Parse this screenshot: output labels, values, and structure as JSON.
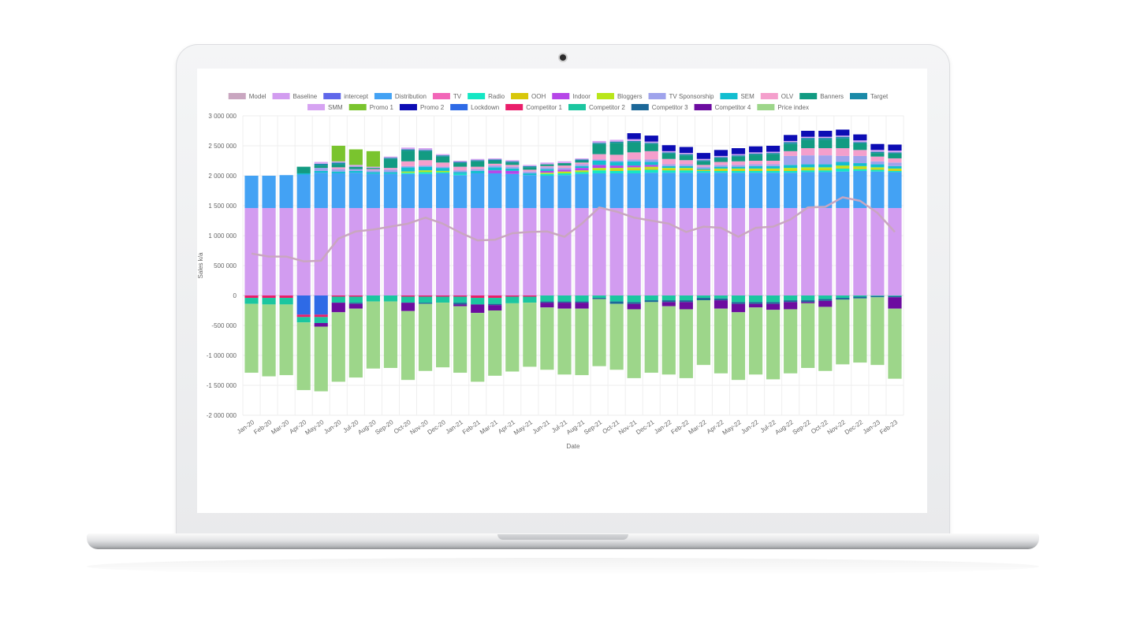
{
  "chart_data": {
    "type": "bar",
    "stacked": true,
    "xlabel": "Date",
    "ylabel": "Sales k/a",
    "ylim": [
      -2000000,
      3000000
    ],
    "yticks": [
      3000000,
      2500000,
      2000000,
      1500000,
      1000000,
      500000,
      0,
      -500000,
      -1000000,
      -1500000,
      -2000000
    ],
    "ytick_labels": [
      "3 000 000",
      "2 500 000",
      "2 000 000",
      "1 500 000",
      "1 000 000",
      "500 000",
      "0",
      "-500 000",
      "-1 000 000",
      "-1 500 000",
      "-2 000 000"
    ],
    "grid": true,
    "legend_position": "top",
    "categories": [
      "Jan-20",
      "Feb-20",
      "Mar-20",
      "Apr-20",
      "May-20",
      "Jun-20",
      "Jul-20",
      "Aug-20",
      "Sep-20",
      "Oct-20",
      "Nov-20",
      "Dec-20",
      "Jan-21",
      "Feb-21",
      "Mar-21",
      "Apr-21",
      "May-21",
      "Jun-21",
      "Jul-21",
      "Aug-21",
      "Sep-21",
      "Oct-21",
      "Nov-21",
      "Dec-21",
      "Jan-22",
      "Feb-22",
      "Mar-22",
      "Apr-22",
      "May-22",
      "Jun-22",
      "Jul-22",
      "Aug-22",
      "Sep-22",
      "Oct-22",
      "Nov-22",
      "Dec-22",
      "Jan-23",
      "Feb-23"
    ],
    "legend": [
      {
        "name": "Model",
        "color": "#c9a6c0"
      },
      {
        "name": "Baseline",
        "color": "#d29cf0"
      },
      {
        "name": "intercept",
        "color": "#5f67ea"
      },
      {
        "name": "Distribution",
        "color": "#43a2f4"
      },
      {
        "name": "TV",
        "color": "#f266b8"
      },
      {
        "name": "Radio",
        "color": "#14e7c4"
      },
      {
        "name": "OOH",
        "color": "#d8c70a"
      },
      {
        "name": "Indoor",
        "color": "#b646e8"
      },
      {
        "name": "Bloggers",
        "color": "#b9e61a"
      },
      {
        "name": "TV Sponsorship",
        "color": "#9fa3ec"
      },
      {
        "name": "SEM",
        "color": "#12bed0"
      },
      {
        "name": "OLV",
        "color": "#f49fcc"
      },
      {
        "name": "Banners",
        "color": "#129b82"
      },
      {
        "name": "Target",
        "color": "#1a8aa8"
      },
      {
        "name": "SMM",
        "color": "#d6a3f2"
      },
      {
        "name": "Promo 1",
        "color": "#7ac42e"
      },
      {
        "name": "Promo 2",
        "color": "#0c0cb4"
      },
      {
        "name": "Lockdown",
        "color": "#2e6ae6"
      },
      {
        "name": "Competitor 1",
        "color": "#ea1e6a"
      },
      {
        "name": "Competitor 2",
        "color": "#1bc6a0"
      },
      {
        "name": "Competitor 3",
        "color": "#1c6898"
      },
      {
        "name": "Competitor 4",
        "color": "#6c0ca0"
      },
      {
        "name": "Price index",
        "color": "#9dd68a"
      }
    ],
    "series": [
      {
        "name": "Baseline",
        "color": "#d29cf0",
        "values": [
          1460000,
          1460000,
          1460000,
          1460000,
          1460000,
          1460000,
          1460000,
          1460000,
          1460000,
          1460000,
          1460000,
          1460000,
          1460000,
          1460000,
          1460000,
          1460000,
          1460000,
          1460000,
          1460000,
          1460000,
          1460000,
          1460000,
          1460000,
          1460000,
          1460000,
          1460000,
          1460000,
          1460000,
          1460000,
          1460000,
          1460000,
          1460000,
          1460000,
          1460000,
          1460000,
          1460000,
          1460000,
          1460000
        ]
      },
      {
        "name": "Distribution",
        "color": "#43a2f4",
        "values": [
          540000,
          540000,
          550000,
          560000,
          590000,
          580000,
          590000,
          570000,
          570000,
          570000,
          570000,
          580000,
          550000,
          580000,
          580000,
          570000,
          550000,
          540000,
          550000,
          570000,
          580000,
          580000,
          580000,
          590000,
          590000,
          590000,
          590000,
          590000,
          590000,
          590000,
          590000,
          590000,
          600000,
          600000,
          610000,
          620000,
          610000,
          600000
        ]
      },
      {
        "name": "Radio",
        "color": "#14e7c4",
        "values": [
          0,
          0,
          0,
          0,
          0,
          0,
          0,
          0,
          0,
          20000,
          30000,
          20000,
          20000,
          0,
          0,
          0,
          0,
          30000,
          30000,
          30000,
          50000,
          40000,
          50000,
          50000,
          40000,
          40000,
          30000,
          30000,
          30000,
          30000,
          30000,
          30000,
          30000,
          30000,
          50000,
          30000,
          30000,
          20000
        ]
      },
      {
        "name": "OOH",
        "color": "#d8c70a",
        "values": [
          0,
          0,
          0,
          0,
          0,
          0,
          0,
          0,
          0,
          0,
          0,
          0,
          0,
          0,
          0,
          0,
          0,
          0,
          0,
          0,
          0,
          20000,
          20000,
          20000,
          20000,
          20000,
          20000,
          20000,
          20000,
          20000,
          20000,
          20000,
          20000,
          20000,
          20000,
          20000,
          20000,
          20000
        ]
      },
      {
        "name": "Bloggers",
        "color": "#b9e61a",
        "values": [
          0,
          0,
          0,
          0,
          0,
          0,
          0,
          0,
          0,
          20000,
          30000,
          20000,
          0,
          0,
          0,
          0,
          0,
          20000,
          30000,
          30000,
          40000,
          30000,
          30000,
          30000,
          20000,
          20000,
          0,
          20000,
          20000,
          20000,
          20000,
          30000,
          30000,
          30000,
          30000,
          30000,
          20000,
          20000
        ]
      },
      {
        "name": "Indoor",
        "color": "#b646e8",
        "values": [
          0,
          0,
          0,
          0,
          0,
          0,
          0,
          0,
          0,
          0,
          0,
          0,
          0,
          0,
          50000,
          50000,
          0,
          30000,
          30000,
          40000,
          50000,
          40000,
          30000,
          30000,
          0,
          0,
          0,
          0,
          0,
          0,
          0,
          0,
          0,
          0,
          0,
          0,
          0,
          0
        ]
      },
      {
        "name": "SEM",
        "color": "#12bed0",
        "values": [
          0,
          0,
          0,
          20000,
          30000,
          30000,
          30000,
          30000,
          30000,
          70000,
          60000,
          50000,
          30000,
          40000,
          50000,
          40000,
          30000,
          30000,
          0,
          30000,
          70000,
          60000,
          70000,
          50000,
          30000,
          30000,
          20000,
          30000,
          30000,
          40000,
          40000,
          50000,
          50000,
          50000,
          60000,
          50000,
          50000,
          40000
        ]
      },
      {
        "name": "TV Sponsorship",
        "color": "#9fa3ec",
        "values": [
          0,
          0,
          0,
          0,
          50000,
          40000,
          30000,
          30000,
          40000,
          20000,
          20000,
          20000,
          30000,
          30000,
          30000,
          30000,
          30000,
          30000,
          30000,
          30000,
          20000,
          20000,
          30000,
          40000,
          30000,
          30000,
          30000,
          30000,
          30000,
          30000,
          30000,
          150000,
          150000,
          150000,
          100000,
          120000,
          50000,
          60000
        ]
      },
      {
        "name": "OLV",
        "color": "#f49fcc",
        "values": [
          0,
          0,
          0,
          0,
          0,
          30000,
          0,
          20000,
          30000,
          80000,
          90000,
          70000,
          60000,
          40000,
          30000,
          30000,
          30000,
          20000,
          40000,
          30000,
          90000,
          100000,
          120000,
          140000,
          90000,
          70000,
          30000,
          50000,
          60000,
          60000,
          60000,
          80000,
          120000,
          120000,
          130000,
          100000,
          80000,
          70000
        ]
      },
      {
        "name": "Banners",
        "color": "#129b82",
        "values": [
          0,
          0,
          0,
          110000,
          40000,
          50000,
          40000,
          20000,
          150000,
          180000,
          150000,
          100000,
          60000,
          90000,
          50000,
          40000,
          40000,
          30000,
          40000,
          30000,
          170000,
          200000,
          170000,
          120000,
          90000,
          80000,
          60000,
          60000,
          80000,
          100000,
          110000,
          120000,
          140000,
          140000,
          160000,
          110000,
          60000,
          80000
        ]
      },
      {
        "name": "Target",
        "color": "#1a8aa8",
        "values": [
          0,
          0,
          0,
          0,
          30000,
          30000,
          0,
          0,
          20000,
          20000,
          20000,
          20000,
          20000,
          20000,
          20000,
          20000,
          20000,
          0,
          0,
          20000,
          20000,
          20000,
          20000,
          20000,
          20000,
          20000,
          20000,
          20000,
          20000,
          20000,
          20000,
          30000,
          30000,
          30000,
          30000,
          20000,
          20000,
          20000
        ]
      },
      {
        "name": "SMM",
        "color": "#d6a3f2",
        "values": [
          0,
          0,
          0,
          0,
          30000,
          20000,
          30000,
          20000,
          20000,
          30000,
          30000,
          20000,
          20000,
          20000,
          20000,
          20000,
          20000,
          30000,
          30000,
          20000,
          30000,
          30000,
          30000,
          20000,
          20000,
          20000,
          20000,
          20000,
          20000,
          20000,
          20000,
          20000,
          20000,
          20000,
          20000,
          30000,
          30000,
          30000
        ]
      },
      {
        "name": "Promo 1",
        "color": "#7ac42e",
        "values": [
          0,
          0,
          0,
          0,
          0,
          260000,
          260000,
          260000,
          0,
          0,
          0,
          0,
          0,
          0,
          0,
          0,
          0,
          0,
          0,
          0,
          0,
          0,
          0,
          0,
          0,
          0,
          0,
          0,
          0,
          0,
          0,
          0,
          0,
          0,
          0,
          0,
          0,
          0
        ]
      },
      {
        "name": "Promo 2",
        "color": "#0c0cb4",
        "values": [
          0,
          0,
          0,
          0,
          0,
          0,
          0,
          0,
          0,
          0,
          0,
          0,
          0,
          0,
          0,
          0,
          0,
          0,
          0,
          0,
          0,
          0,
          100000,
          100000,
          100000,
          100000,
          100000,
          100000,
          100000,
          100000,
          100000,
          100000,
          100000,
          100000,
          100000,
          100000,
          100000,
          100000
        ]
      },
      {
        "name": "Lockdown",
        "color": "#2e6ae6",
        "values": [
          0,
          0,
          0,
          -320000,
          -320000,
          0,
          0,
          0,
          0,
          0,
          0,
          0,
          0,
          0,
          0,
          0,
          0,
          0,
          0,
          0,
          0,
          0,
          0,
          0,
          0,
          0,
          0,
          0,
          0,
          0,
          0,
          0,
          0,
          0,
          0,
          0,
          0,
          0
        ]
      },
      {
        "name": "Competitor 1",
        "color": "#ea1e6a",
        "values": [
          -40000,
          -40000,
          -40000,
          -40000,
          -40000,
          -20000,
          -20000,
          0,
          0,
          -20000,
          -20000,
          -20000,
          -20000,
          -40000,
          -40000,
          -20000,
          -20000,
          0,
          0,
          0,
          0,
          0,
          0,
          0,
          0,
          0,
          0,
          0,
          0,
          0,
          0,
          0,
          0,
          0,
          0,
          0,
          0,
          0
        ]
      },
      {
        "name": "Competitor 2",
        "color": "#1bc6a0",
        "values": [
          -100000,
          -110000,
          -110000,
          -90000,
          -100000,
          -100000,
          -100000,
          -100000,
          -100000,
          -100000,
          -100000,
          -100000,
          -100000,
          -110000,
          -100000,
          -110000,
          -100000,
          -100000,
          -100000,
          -100000,
          -40000,
          -100000,
          -110000,
          -80000,
          -80000,
          -80000,
          -40000,
          -50000,
          -110000,
          -110000,
          -110000,
          -80000,
          -80000,
          -60000,
          -40000,
          -20000,
          -10000,
          -10000
        ]
      },
      {
        "name": "Competitor 3",
        "color": "#1c6898",
        "values": [
          0,
          0,
          0,
          0,
          0,
          0,
          -20000,
          0,
          0,
          0,
          -20000,
          0,
          -30000,
          0,
          -20000,
          0,
          0,
          -20000,
          -20000,
          -20000,
          -20000,
          -40000,
          -30000,
          -30000,
          -30000,
          -30000,
          -40000,
          -30000,
          -30000,
          -30000,
          -30000,
          -30000,
          -30000,
          -30000,
          -30000,
          -30000,
          -20000,
          -20000
        ]
      },
      {
        "name": "Competitor 4",
        "color": "#6c0ca0",
        "values": [
          0,
          0,
          0,
          0,
          -60000,
          -160000,
          -80000,
          0,
          0,
          -140000,
          0,
          0,
          -30000,
          -140000,
          -90000,
          0,
          0,
          -80000,
          -100000,
          -100000,
          0,
          0,
          -90000,
          0,
          -70000,
          -120000,
          0,
          -140000,
          -140000,
          -60000,
          -100000,
          -120000,
          -20000,
          -100000,
          0,
          0,
          0,
          -190000
        ]
      },
      {
        "name": "Price index",
        "color": "#9dd68a",
        "values": [
          -1150000,
          -1200000,
          -1180000,
          -1130000,
          -1080000,
          -1160000,
          -1150000,
          -1120000,
          -1110000,
          -1150000,
          -1120000,
          -1080000,
          -1110000,
          -1150000,
          -1090000,
          -1140000,
          -1070000,
          -1040000,
          -1100000,
          -1110000,
          -1120000,
          -1100000,
          -1150000,
          -1180000,
          -1140000,
          -1150000,
          -1080000,
          -1080000,
          -1130000,
          -1120000,
          -1160000,
          -1070000,
          -1080000,
          -1070000,
          -1080000,
          -1070000,
          -1130000,
          -1170000
        ]
      }
    ],
    "line_series": {
      "name": "Model",
      "color": "#c9a6c0",
      "values": [
        700000,
        650000,
        650000,
        570000,
        580000,
        950000,
        1070000,
        1100000,
        1150000,
        1200000,
        1300000,
        1200000,
        1050000,
        920000,
        930000,
        1040000,
        1060000,
        1070000,
        980000,
        1200000,
        1470000,
        1400000,
        1300000,
        1250000,
        1200000,
        1060000,
        1150000,
        1130000,
        980000,
        1130000,
        1150000,
        1270000,
        1470000,
        1480000,
        1640000,
        1580000,
        1380000,
        1060000
      ]
    }
  }
}
